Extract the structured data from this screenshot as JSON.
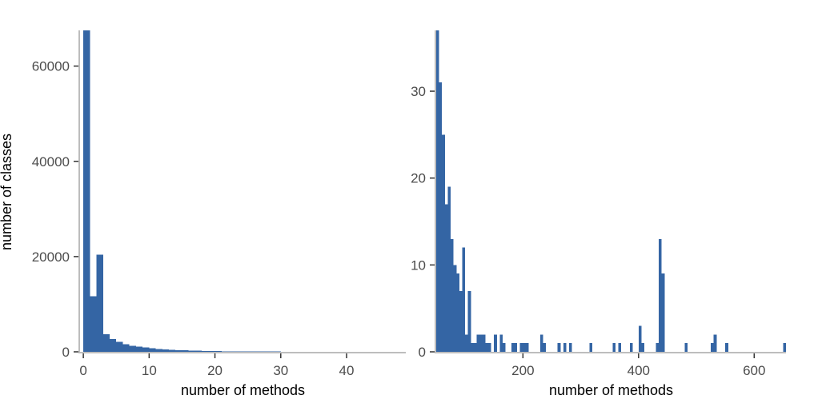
{
  "chart_data": [
    {
      "type": "bar",
      "title": "",
      "xlabel": "number of methods",
      "ylabel": "number of classes",
      "xlim": [
        -0.5,
        49
      ],
      "ylim": [
        0,
        67500
      ],
      "bar_width": 1,
      "bar_color": "#3465a4",
      "x_ticks": [
        0,
        10,
        20,
        30,
        40
      ],
      "x_tick_labels": [
        "0",
        "10",
        "20",
        "30",
        "40"
      ],
      "y_ticks": [
        0,
        20000,
        40000,
        60000
      ],
      "y_tick_labels": [
        "0",
        "20000",
        "40000",
        "60000"
      ],
      "x": [
        0,
        1,
        2,
        3,
        4,
        5,
        6,
        7,
        8,
        9,
        10,
        11,
        12,
        13,
        14,
        15,
        16,
        17,
        18,
        19,
        20,
        21,
        22,
        23,
        24,
        25,
        26,
        27,
        28,
        29,
        30,
        31,
        32,
        33,
        34,
        35,
        36,
        37,
        38,
        39,
        40,
        41,
        42,
        43,
        44,
        45,
        46,
        47,
        48
      ],
      "values": [
        67500,
        11700,
        20400,
        3700,
        2700,
        2100,
        1600,
        1300,
        1100,
        900,
        750,
        600,
        500,
        420,
        360,
        300,
        260,
        220,
        190,
        160,
        140,
        120,
        100,
        90,
        80,
        70,
        60,
        55,
        50,
        45,
        40,
        35,
        32,
        30,
        28,
        25,
        22,
        20,
        18,
        16,
        15,
        14,
        13,
        12,
        11,
        10,
        9,
        8,
        7
      ],
      "grid": false,
      "legend": "none"
    },
    {
      "type": "bar",
      "title": "",
      "xlabel": "number of methods",
      "ylabel": "",
      "xlim": [
        50,
        655
      ],
      "ylim": [
        0,
        37
      ],
      "bar_width": 5,
      "bar_color": "#3465a4",
      "x_ticks": [
        200,
        400,
        600
      ],
      "x_tick_labels": [
        "200",
        "400",
        "600"
      ],
      "y_ticks": [
        0,
        10,
        20,
        30
      ],
      "y_tick_labels": [
        "0",
        "10",
        "20",
        "30"
      ],
      "x": [
        50,
        55,
        60,
        65,
        70,
        75,
        80,
        85,
        90,
        95,
        100,
        105,
        110,
        115,
        120,
        125,
        130,
        135,
        140,
        145,
        150,
        155,
        160,
        165,
        170,
        175,
        180,
        185,
        190,
        195,
        200,
        205,
        210,
        215,
        220,
        225,
        230,
        235,
        240,
        245,
        250,
        255,
        260,
        265,
        270,
        275,
        280,
        285,
        290,
        295,
        300,
        305,
        310,
        315,
        320,
        325,
        330,
        335,
        340,
        345,
        350,
        355,
        360,
        365,
        370,
        375,
        380,
        385,
        390,
        395,
        400,
        405,
        410,
        415,
        420,
        425,
        430,
        435,
        440,
        445,
        450,
        455,
        460,
        465,
        470,
        475,
        480,
        485,
        490,
        495,
        500,
        505,
        510,
        515,
        520,
        525,
        530,
        535,
        540,
        545,
        550,
        555,
        560,
        565,
        570,
        575,
        580,
        585,
        590,
        595,
        600,
        605,
        610,
        615,
        620,
        625,
        630,
        635,
        640,
        645,
        650
      ],
      "values": [
        37,
        31,
        25,
        17,
        19,
        13,
        10,
        9,
        7,
        12,
        2,
        7,
        1,
        1,
        2,
        2,
        2,
        1,
        1,
        0,
        2,
        0,
        2,
        1,
        0,
        0,
        1,
        1,
        0,
        1,
        1,
        1,
        0,
        0,
        0,
        0,
        2,
        1,
        0,
        0,
        0,
        0,
        1,
        0,
        1,
        0,
        1,
        0,
        0,
        0,
        0,
        0,
        0,
        1,
        0,
        0,
        0,
        0,
        0,
        0,
        0,
        1,
        0,
        1,
        0,
        0,
        0,
        1,
        0,
        0,
        3,
        1,
        0,
        0,
        0,
        0,
        1,
        13,
        9,
        0,
        0,
        0,
        0,
        0,
        0,
        0,
        1,
        0,
        0,
        0,
        0,
        0,
        0,
        0,
        0,
        1,
        2,
        0,
        0,
        0,
        1,
        0,
        0,
        0,
        0,
        0,
        0,
        0,
        0,
        0,
        0,
        0,
        0,
        0,
        0,
        0,
        0,
        0,
        0,
        0,
        1
      ],
      "grid": false,
      "legend": "none"
    }
  ]
}
